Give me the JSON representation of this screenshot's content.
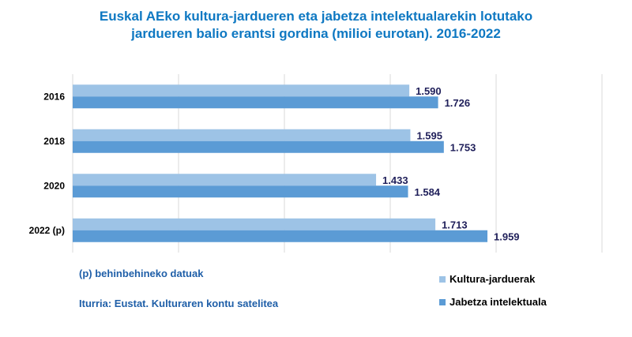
{
  "title_line1": "Euskal AEko kultura-jardueren eta jabetza intelektualarekin lotutako",
  "title_line2": "jardueren balio erantsi gordina (milioi eurotan).  2016-2022",
  "note_provisional": "(p) behinbehineko datuak",
  "note_source": "Iturria: Eustat. Kulturaren kontu satelitea",
  "chart_data": {
    "type": "bar",
    "orientation": "horizontal",
    "categories": [
      "2016",
      "2018",
      "2020",
      "2022 (p)"
    ],
    "series": [
      {
        "name": "Kultura-jarduerak",
        "values": [
          1590,
          1595,
          1433,
          1713
        ],
        "labels": [
          "1.590",
          "1.595",
          "1.433",
          "1.713"
        ],
        "color": "#9DC3E6"
      },
      {
        "name": "Jabetza intelektuala",
        "values": [
          1726,
          1753,
          1584,
          1959
        ],
        "labels": [
          "1.726",
          "1.753",
          "1.584",
          "1.959"
        ],
        "color": "#5B9BD5"
      }
    ],
    "xlim": [
      0,
      2500
    ],
    "grid": true,
    "legend_position": "bottom-right"
  }
}
